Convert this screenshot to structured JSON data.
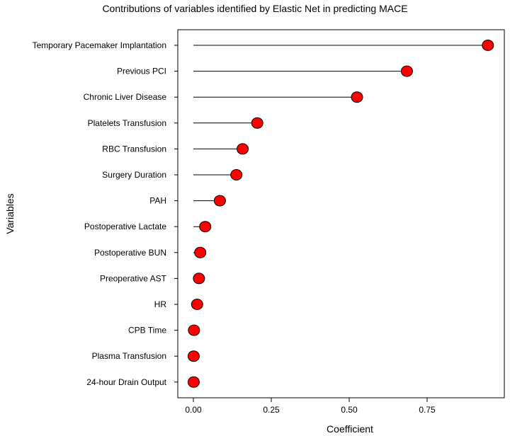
{
  "chart_data": {
    "type": "lollipop",
    "title": "Contributions of variables identified by Elastic Net in predicting MACE",
    "xlabel": "Coefficient",
    "ylabel": "Variables",
    "xlim": [
      -0.07,
      1.0
    ],
    "xticks": [
      0.0,
      0.25,
      0.5,
      0.75
    ],
    "xtick_labels": [
      "0.00",
      "0.25",
      "0.50",
      "0.75"
    ],
    "marker_color": "#ff0000",
    "stem_color": "#000000",
    "grid": false,
    "categories": [
      "Temporary Pacemaker Implantation",
      "Previous PCI",
      "Chronic Liver Disease",
      "Platelets Transfusion",
      "RBC Transfusion",
      "Surgery Duration",
      "PAH",
      "Postoperative Lactate",
      "Postoperative BUN",
      "Preoperative AST",
      "HR",
      "CPB Time",
      "Plasma Transfusion",
      "24-hour Drain Output"
    ],
    "values": [
      0.945,
      0.685,
      0.525,
      0.205,
      0.158,
      0.138,
      0.085,
      0.038,
      0.022,
      0.018,
      0.012,
      0.002,
      0.001,
      0.001
    ]
  }
}
